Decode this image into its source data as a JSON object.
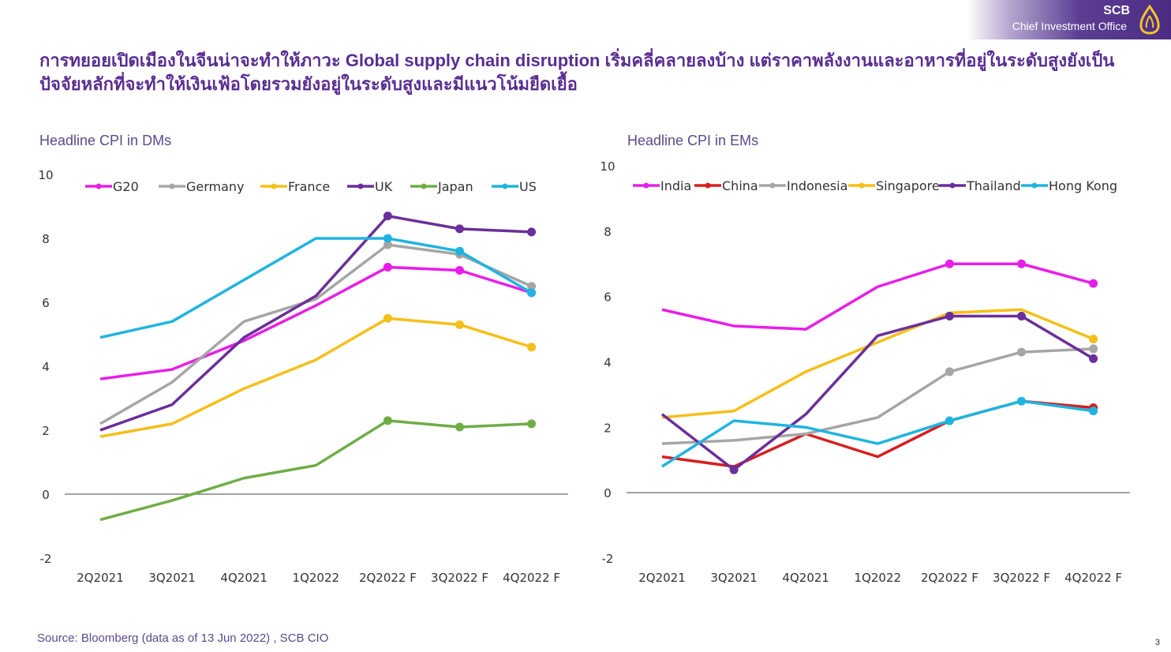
{
  "brand": {
    "name": "SCB",
    "subtitle": "Chief Investment Office",
    "colors": {
      "primary": "#4b2c82"
    }
  },
  "headline": "การทยอยเปิดเมืองในจีนน่าจะทำให้ภาวะ Global supply chain disruption เริ่มคลี่คลายลงบ้าง แต่ราคาพลังงานและอาหารที่อยู่ในระดับสูงยังเป็นปัจจัยหลักที่จะทำให้เงินเฟ้อโดยรวมยังอยู่ในระดับสูงและมีแนวโน้มยืดเยื้อ",
  "source": "Source: Bloomberg (data as of 13 Jun 2022) , SCB CIO",
  "page_number": "3",
  "chart_data": [
    {
      "type": "line",
      "title": "Headline CPI in DMs",
      "categories": [
        "2Q2021",
        "3Q2021",
        "4Q2021",
        "1Q2022",
        "2Q2022 F",
        "3Q2022 F",
        "4Q2022 F"
      ],
      "ylim": [
        -2,
        10
      ],
      "yticks": [
        -2,
        0,
        2,
        4,
        6,
        8,
        10
      ],
      "xlabel": "",
      "ylabel": "",
      "legend_position": "top",
      "series": [
        {
          "name": "G20",
          "color": "#e81ee8",
          "values": [
            3.6,
            3.9,
            4.8,
            5.9,
            7.1,
            7.0,
            6.3
          ]
        },
        {
          "name": "Germany",
          "color": "#a6a6a6",
          "values": [
            2.2,
            3.5,
            5.4,
            6.1,
            7.8,
            7.5,
            6.5
          ]
        },
        {
          "name": "France",
          "color": "#f5bf1a",
          "values": [
            1.8,
            2.2,
            3.3,
            4.2,
            5.5,
            5.3,
            4.6
          ]
        },
        {
          "name": "UK",
          "color": "#6a2f9a",
          "values": [
            2.0,
            2.8,
            4.9,
            6.2,
            8.7,
            8.3,
            8.2
          ]
        },
        {
          "name": "Japan",
          "color": "#6fad47",
          "values": [
            -0.8,
            -0.2,
            0.5,
            0.9,
            2.3,
            2.1,
            2.2
          ]
        },
        {
          "name": "US",
          "color": "#1fb4e0",
          "values": [
            4.9,
            5.4,
            6.7,
            8.0,
            8.0,
            7.6,
            6.3
          ]
        }
      ]
    },
    {
      "type": "line",
      "title": "Headline CPI in EMs",
      "categories": [
        "2Q2021",
        "3Q2021",
        "4Q2021",
        "1Q2022",
        "2Q2022 F",
        "3Q2022 F",
        "4Q2022 F"
      ],
      "ylim": [
        -2,
        10
      ],
      "yticks": [
        -2,
        0,
        2,
        4,
        6,
        8,
        10
      ],
      "xlabel": "",
      "ylabel": "",
      "legend_position": "top",
      "series": [
        {
          "name": "India",
          "color": "#e81ee8",
          "values": [
            5.6,
            5.1,
            5.0,
            6.3,
            7.0,
            7.0,
            6.4
          ]
        },
        {
          "name": "China",
          "color": "#d61f1f",
          "values": [
            1.1,
            0.8,
            1.8,
            1.1,
            2.2,
            2.8,
            2.6
          ]
        },
        {
          "name": "Indonesia",
          "color": "#a6a6a6",
          "values": [
            1.5,
            1.6,
            1.8,
            2.3,
            3.7,
            4.3,
            4.4
          ]
        },
        {
          "name": "Singapore",
          "color": "#f5bf1a",
          "values": [
            2.3,
            2.5,
            3.7,
            4.6,
            5.5,
            5.6,
            4.7
          ]
        },
        {
          "name": "Thailand",
          "color": "#6a2f9a",
          "values": [
            2.4,
            0.7,
            2.4,
            4.8,
            5.4,
            5.4,
            4.1
          ]
        },
        {
          "name": "Hong Kong",
          "color": "#1fb4e0",
          "values": [
            0.8,
            2.2,
            2.0,
            1.5,
            2.2,
            2.8,
            2.5
          ]
        }
      ]
    }
  ]
}
